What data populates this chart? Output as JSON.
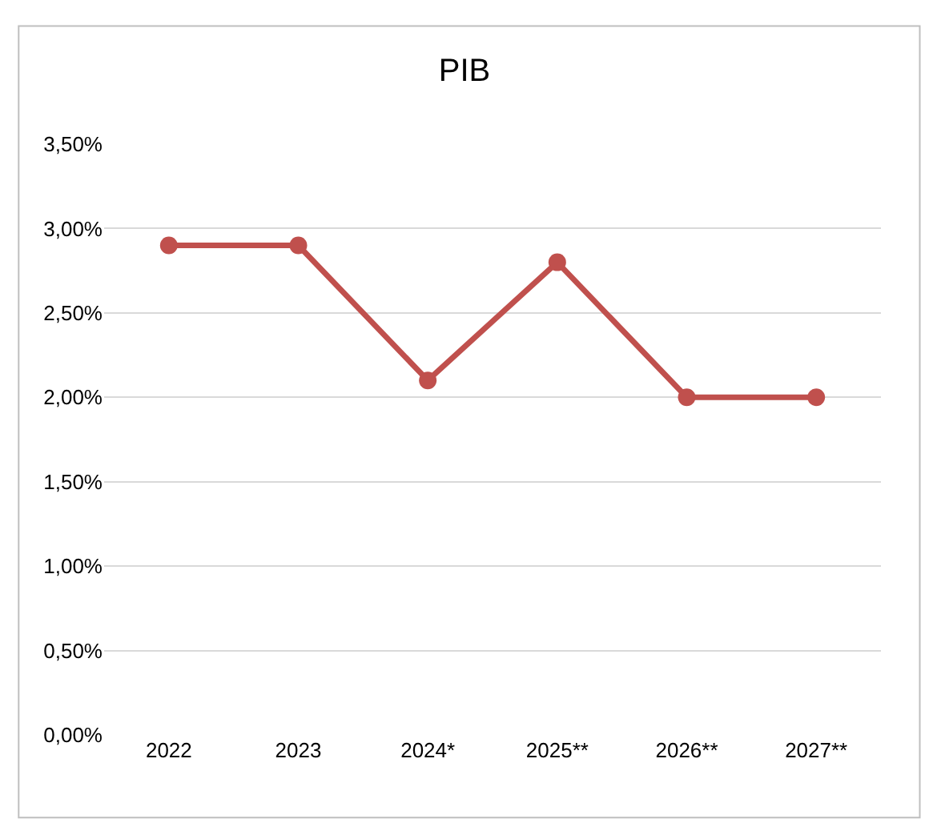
{
  "chart_data": {
    "type": "line",
    "title": "PIB",
    "categories": [
      "2022",
      "2023",
      "2024*",
      "2025**",
      "2026**",
      "2027**"
    ],
    "series": [
      {
        "color": "#c0504d",
        "values": [
          2.9,
          2.9,
          2.1,
          2.8,
          2.0,
          2.0
        ]
      }
    ],
    "ylim": [
      0,
      3.5
    ],
    "yticks": [
      {
        "value": 0,
        "label": "0,00%"
      },
      {
        "value": 0.5,
        "label": "0,50%"
      },
      {
        "value": 1,
        "label": "1,00%"
      },
      {
        "value": 1.5,
        "label": "1,50%"
      },
      {
        "value": 2,
        "label": "2,00%"
      },
      {
        "value": 2.5,
        "label": "2,50%"
      },
      {
        "value": 3,
        "label": "3,00%"
      },
      {
        "value": 3.5,
        "label": "3,50%"
      }
    ],
    "grid": "y",
    "marker": "circle",
    "line_style": "solid"
  }
}
